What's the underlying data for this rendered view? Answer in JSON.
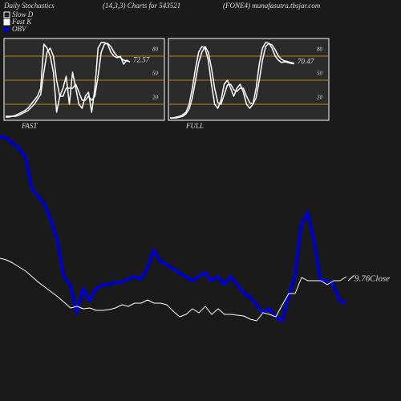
{
  "header": {
    "left": "Daily Stochastics",
    "middle": "(14,3,3) Charts for 543521",
    "right": "(FONE4) munafasutra.tbsjar.com"
  },
  "chart_data": [
    {
      "type": "line",
      "title": "FAST",
      "ylim": [
        0,
        100
      ],
      "yticks": [
        20,
        50,
        80
      ],
      "value_label": "72.57",
      "series": [
        {
          "name": "Slow D",
          "color": "#ffffff",
          "values": [
            4,
            4,
            5,
            5,
            6,
            8,
            10,
            12,
            16,
            20,
            26,
            32,
            60,
            85,
            90,
            80,
            50,
            30,
            30,
            40,
            40,
            40,
            45,
            35,
            25,
            25,
            30,
            25,
            30,
            55,
            85,
            95,
            96,
            92,
            85,
            80,
            78,
            75,
            74,
            73
          ]
        },
        {
          "name": "Fast K",
          "color": "#ffffff",
          "values": [
            5,
            5,
            5,
            6,
            8,
            10,
            12,
            15,
            20,
            25,
            30,
            40,
            95,
            90,
            80,
            60,
            10,
            30,
            40,
            55,
            20,
            60,
            40,
            20,
            15,
            30,
            35,
            10,
            40,
            90,
            97,
            97,
            95,
            85,
            80,
            78,
            80,
            70,
            75,
            72.57
          ]
        }
      ]
    },
    {
      "type": "line",
      "title": "FULL",
      "ylim": [
        0,
        100
      ],
      "yticks": [
        20,
        50,
        80
      ],
      "value_label": "70.47",
      "series": [
        {
          "name": "Slow D",
          "color": "#ffffff",
          "values": [
            3,
            3,
            3,
            4,
            5,
            8,
            14,
            28,
            50,
            72,
            85,
            92,
            85,
            65,
            40,
            22,
            20,
            32,
            44,
            45,
            38,
            36,
            40,
            40,
            30,
            22,
            20,
            28,
            50,
            75,
            92,
            96,
            94,
            88,
            80,
            76,
            74,
            73,
            72,
            71
          ]
        },
        {
          "name": "Fast K",
          "color": "#ffffff",
          "values": [
            3,
            3,
            4,
            5,
            7,
            10,
            20,
            40,
            65,
            85,
            92,
            90,
            75,
            45,
            20,
            15,
            25,
            45,
            50,
            40,
            30,
            40,
            45,
            35,
            20,
            15,
            20,
            40,
            70,
            90,
            97,
            96,
            90,
            80,
            75,
            72,
            73,
            72,
            71,
            70.47
          ]
        }
      ]
    },
    {
      "type": "line",
      "ylim": [
        0,
        340
      ],
      "last_price": "9.76",
      "series": [
        {
          "name": "OBV",
          "color": "#0000cc",
          "values": [
            330,
            328,
            322,
            315,
            305,
            265,
            255,
            245,
            225,
            200,
            155,
            145,
            110,
            140,
            125,
            140,
            145,
            145,
            148,
            148,
            152,
            155,
            152,
            165,
            188,
            175,
            170,
            165,
            160,
            155,
            150,
            155,
            160,
            150,
            155,
            145,
            155,
            145,
            135,
            130,
            120,
            110,
            115,
            105,
            100,
            130,
            155,
            220,
            235,
            200,
            150,
            150,
            145,
            125,
            122
          ]
        },
        {
          "name": "Close",
          "color": "#ffffff",
          "values": [
            178,
            176,
            172,
            167,
            162,
            155,
            148,
            142,
            136,
            130,
            123,
            116,
            118,
            115,
            116,
            113,
            113,
            114,
            116,
            120,
            118,
            122,
            122,
            126,
            122,
            122,
            120,
            112,
            105,
            108,
            115,
            110,
            118,
            108,
            115,
            108,
            108,
            107,
            106,
            102,
            100,
            110,
            108,
            105,
            120,
            134,
            134,
            154,
            150,
            150,
            150,
            145,
            150,
            150,
            155
          ]
        }
      ]
    }
  ]
}
